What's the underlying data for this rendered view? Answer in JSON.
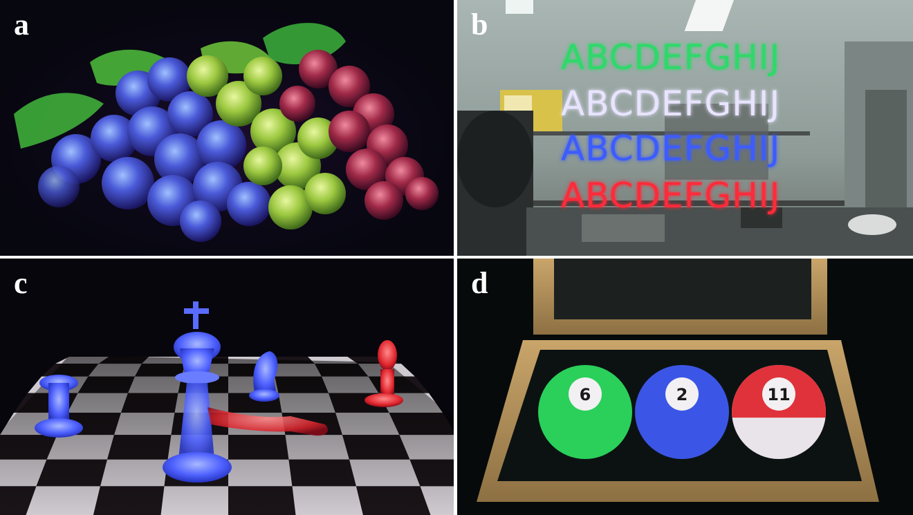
{
  "panels": [
    {
      "label": "a"
    },
    {
      "label": "b",
      "text_rows": [
        "ABCDEFGHIJ",
        "ABCDEFGHIJ",
        "ABCDEFGHIJ",
        "ABCDEFGHIJ"
      ],
      "text_colors": [
        "#2fd86a",
        "#e8e4ff",
        "#3c5cff",
        "#ff2a3a"
      ]
    },
    {
      "label": "c"
    },
    {
      "label": "d",
      "balls": [
        {
          "number": "6",
          "color": "#2ad05a"
        },
        {
          "number": "2",
          "color": "#3b56e6"
        },
        {
          "number": "11",
          "color": "#e0323a"
        }
      ]
    }
  ]
}
